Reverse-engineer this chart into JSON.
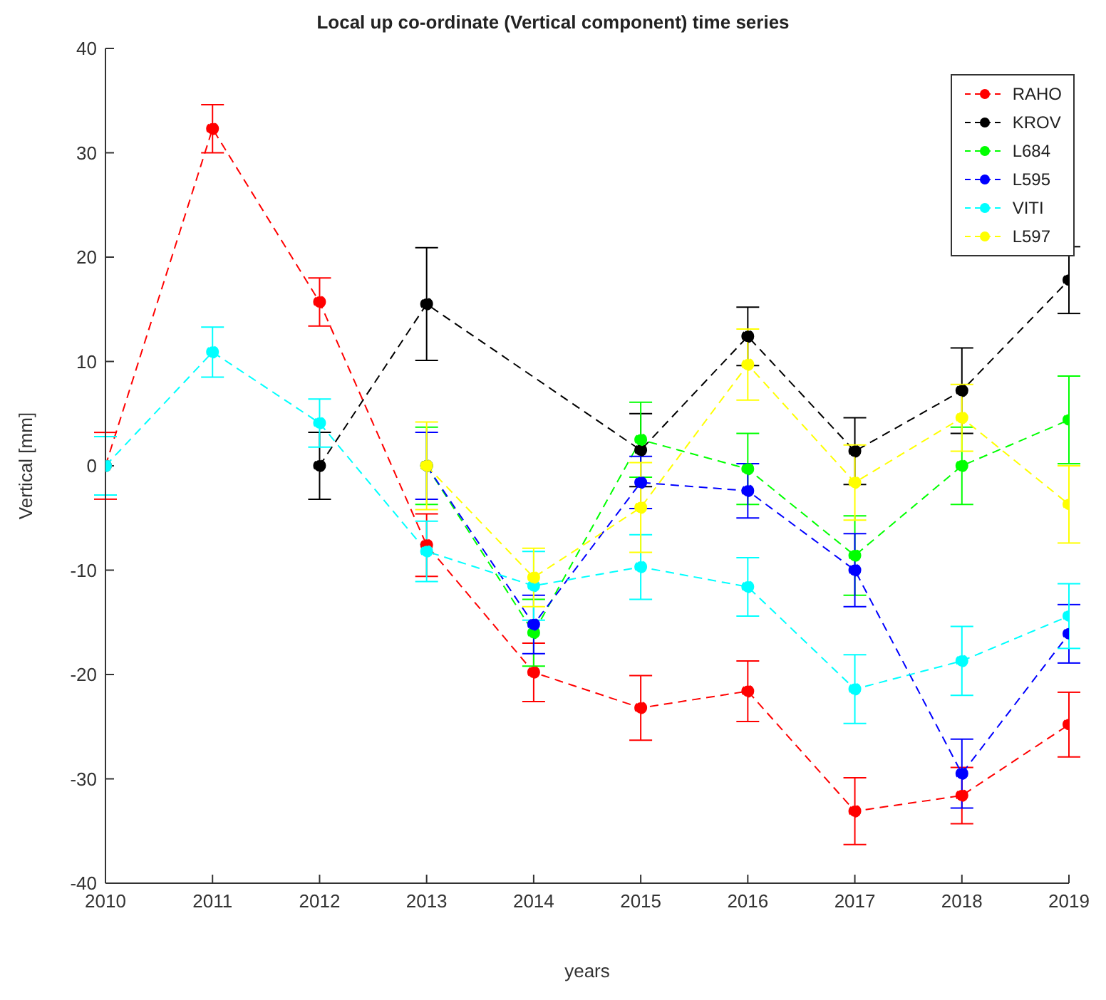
{
  "chart_data": {
    "type": "line",
    "title": "Local up co-ordinate (Vertical component) time series",
    "xlabel": "years",
    "ylabel": "Vertical [mm]",
    "x": [
      2010,
      2011,
      2012,
      2013,
      2014,
      2015,
      2016,
      2017,
      2018,
      2019
    ],
    "series": [
      {
        "name": "RAHO",
        "color": "#ff0000",
        "values": [
          0,
          32.3,
          15.7,
          -7.6,
          -19.8,
          -23.2,
          -21.6,
          -33.1,
          -31.6,
          -24.8
        ],
        "errors": [
          3.2,
          2.3,
          2.3,
          3.0,
          2.8,
          3.1,
          2.9,
          3.2,
          2.7,
          3.1
        ]
      },
      {
        "name": "KROV",
        "color": "#000000",
        "values": [
          null,
          null,
          0,
          15.5,
          null,
          1.5,
          12.4,
          1.4,
          7.2,
          17.8
        ],
        "errors": [
          null,
          null,
          3.2,
          5.4,
          null,
          3.5,
          2.8,
          3.2,
          4.1,
          3.2
        ]
      },
      {
        "name": "L684",
        "color": "#00ff00",
        "values": [
          null,
          null,
          null,
          0,
          -16.0,
          2.5,
          -0.3,
          -8.6,
          0,
          4.4
        ],
        "errors": [
          null,
          null,
          null,
          3.7,
          3.2,
          3.6,
          3.4,
          3.8,
          3.7,
          4.2
        ]
      },
      {
        "name": "L595",
        "color": "#0000ff",
        "values": [
          null,
          null,
          null,
          0,
          -15.2,
          -1.6,
          -2.4,
          -10.0,
          -29.5,
          -16.1
        ],
        "errors": [
          null,
          null,
          null,
          3.2,
          2.8,
          2.5,
          2.6,
          3.5,
          3.3,
          2.8
        ]
      },
      {
        "name": "VITI",
        "color": "#00ffff",
        "values": [
          0,
          10.9,
          4.1,
          -8.2,
          -11.5,
          -9.7,
          -11.6,
          -21.4,
          -18.7,
          -14.4
        ],
        "errors": [
          2.8,
          2.4,
          2.3,
          2.9,
          3.3,
          3.1,
          2.8,
          3.3,
          3.3,
          3.1
        ]
      },
      {
        "name": "L597",
        "color": "#ffff00",
        "values": [
          null,
          null,
          null,
          0,
          -10.7,
          -4.0,
          9.7,
          -1.6,
          4.6,
          -3.7
        ],
        "errors": [
          null,
          null,
          null,
          4.2,
          2.8,
          4.3,
          3.4,
          3.6,
          3.2,
          3.7
        ]
      }
    ],
    "xlim": [
      2010,
      2019
    ],
    "xticks": [
      2010,
      2011,
      2012,
      2013,
      2014,
      2015,
      2016,
      2017,
      2018,
      2019
    ],
    "ylim": [
      -40,
      40
    ],
    "yticks": [
      -40,
      -30,
      -20,
      -10,
      0,
      10,
      20,
      30,
      40
    ],
    "grid": false,
    "legend": "top right",
    "marker": "circle",
    "line_style": "dashed"
  }
}
